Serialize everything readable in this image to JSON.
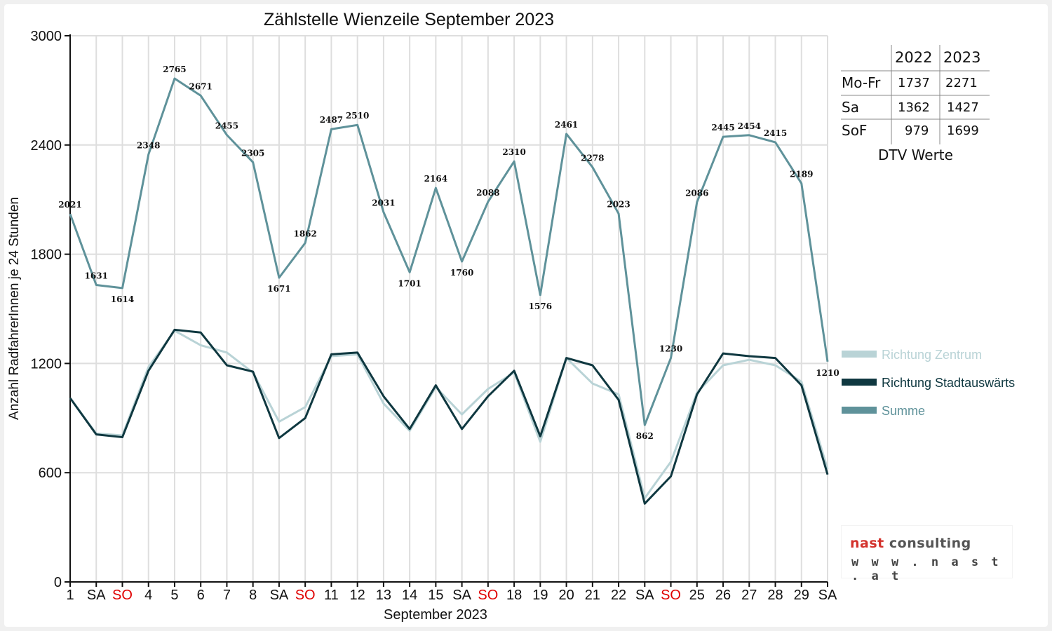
{
  "chart_data": {
    "type": "line",
    "title": "Zählstelle Wienzeile September 2023",
    "xlabel": "September 2023",
    "ylabel": "Anzahl RadfahrerInnen je 24 Stunden",
    "ylim": [
      0,
      3000
    ],
    "yticks": [
      0,
      600,
      1200,
      1800,
      2400,
      3000
    ],
    "grid": true,
    "legend_position": "right",
    "categories": [
      "1",
      "SA",
      "SO",
      "4",
      "5",
      "6",
      "7",
      "8",
      "SA",
      "SO",
      "11",
      "12",
      "13",
      "14",
      "15",
      "SA",
      "SO",
      "18",
      "19",
      "20",
      "21",
      "22",
      "SA",
      "SO",
      "25",
      "26",
      "27",
      "28",
      "29",
      "SA"
    ],
    "red_categories": [
      "SO"
    ],
    "series": [
      {
        "name": "Richtung Zentrum",
        "color": "#b9d3d6",
        "width": 3,
        "values": [
          1010,
          815,
          805,
          1180,
          1380,
          1300,
          1260,
          1150,
          880,
          960,
          1240,
          1250,
          980,
          830,
          1070,
          920,
          1060,
          1150,
          770,
          1230,
          1090,
          1030,
          460,
          660,
          1040,
          1190,
          1220,
          1190,
          1100,
          620
        ]
      },
      {
        "name": "Richtung Stadtauswärts",
        "color": "#0f3840",
        "width": 3,
        "values": [
          1010,
          810,
          795,
          1160,
          1385,
          1370,
          1190,
          1155,
          790,
          900,
          1250,
          1260,
          1020,
          840,
          1080,
          840,
          1020,
          1160,
          800,
          1230,
          1190,
          1000,
          430,
          580,
          1030,
          1255,
          1240,
          1230,
          1080,
          590
        ]
      },
      {
        "name": "Summe",
        "color": "#5f929a",
        "width": 3,
        "values": [
          2021,
          1631,
          1614,
          2348,
          2765,
          2671,
          2455,
          2305,
          1671,
          1862,
          2487,
          2510,
          2031,
          1701,
          2164,
          1760,
          2088,
          2310,
          1576,
          2461,
          2278,
          2023,
          862,
          1230,
          2086,
          2445,
          2454,
          2415,
          2189,
          1210
        ],
        "labels": [
          "2021",
          "1631",
          "1614",
          "2348",
          "2765",
          "2671",
          "2455",
          "2305",
          "1671",
          "1862",
          "2487",
          "2510",
          "2031",
          "1701",
          "2164",
          "1760",
          "2088",
          "2310",
          "1576",
          "2461",
          "2278",
          "2023",
          "862",
          "1230",
          "2086",
          "2445",
          "2454",
          "2415",
          "2189",
          "1210"
        ]
      }
    ]
  },
  "dtv_table": {
    "headers": [
      "",
      "2022",
      "2023"
    ],
    "rows": [
      {
        "label": "Mo-Fr",
        "v2022": "1737",
        "v2023": "2271"
      },
      {
        "label": "Sa",
        "v2022": "1362",
        "v2023": "1427"
      },
      {
        "label": "SoF",
        "v2022": "979",
        "v2023": "1699"
      }
    ],
    "caption": "DTV Werte"
  },
  "logo": {
    "word1": "nast",
    "word2": "consulting",
    "url": "w w w . n a s t . a t",
    "color_word1": "#d3322c",
    "color_word2": "#555555"
  }
}
